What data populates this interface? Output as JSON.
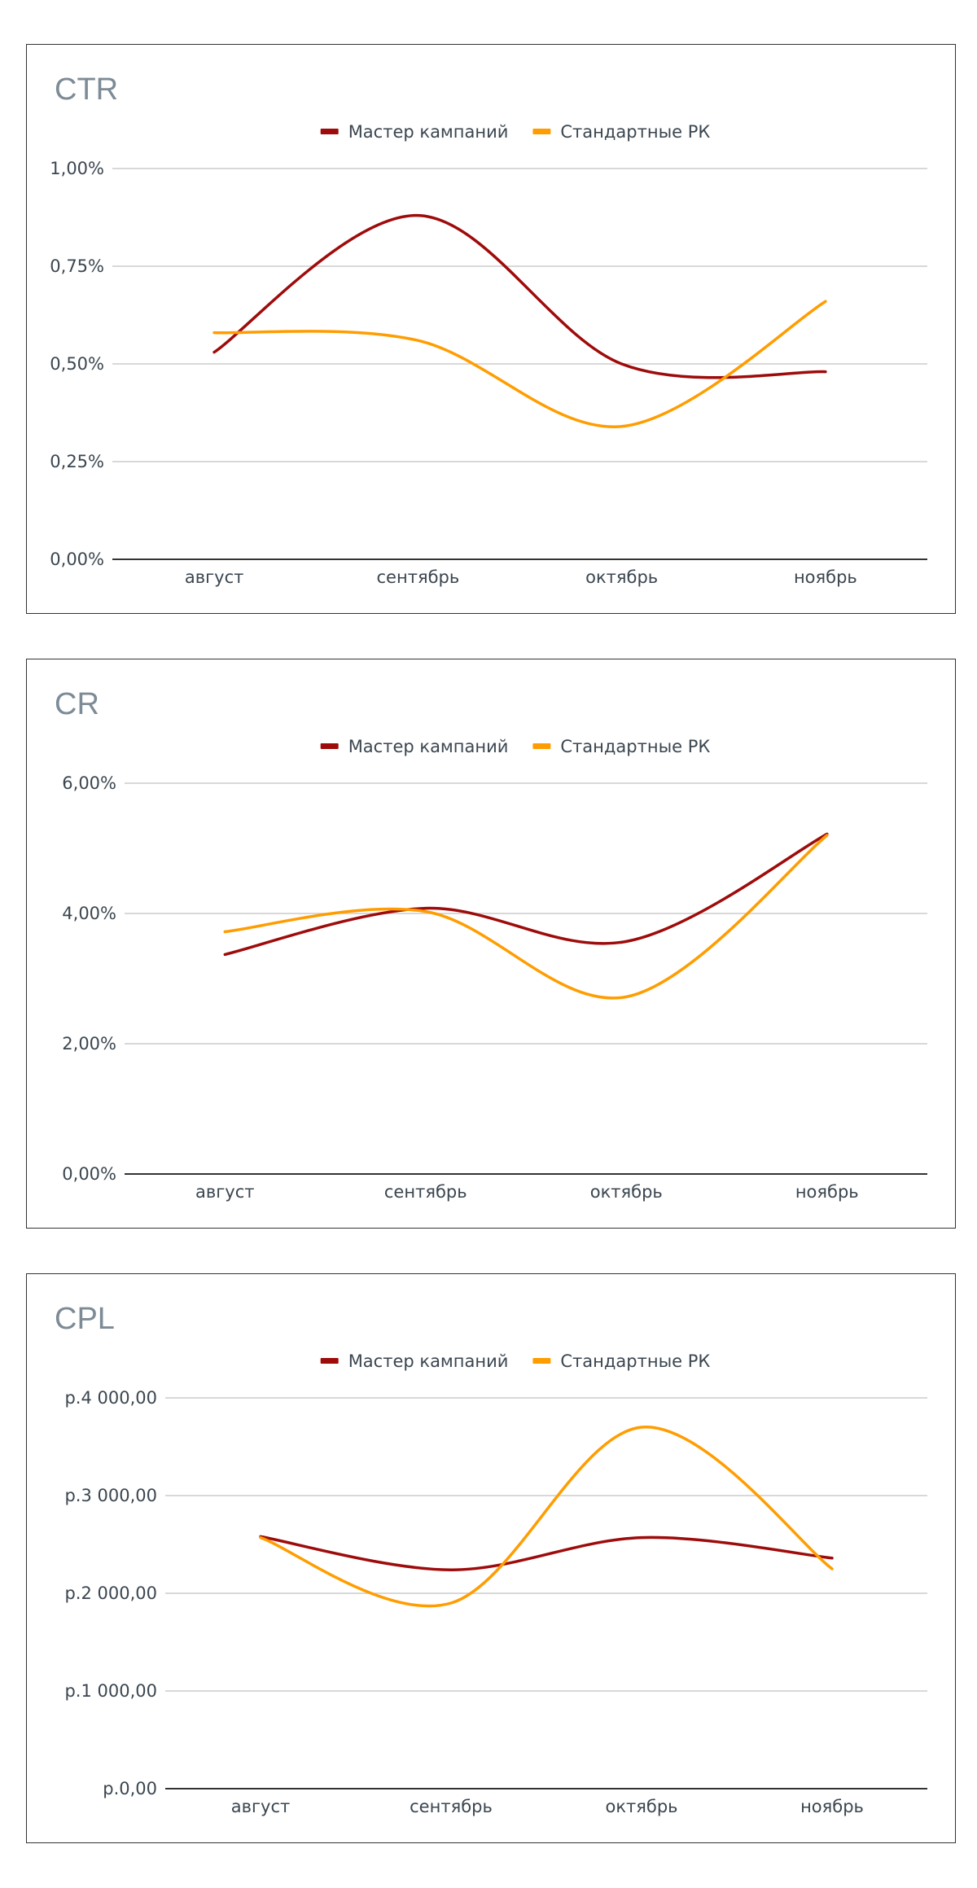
{
  "legend": {
    "series_names": [
      "Мастер кампаний",
      "Стандартные РК"
    ],
    "colors": [
      "#9e0b0b",
      "#ff9d00"
    ]
  },
  "chart_data": [
    {
      "type": "line",
      "title": "CTR",
      "xlabel": "",
      "ylabel": "",
      "categories": [
        "август",
        "сентябрь",
        "октябрь",
        "ноябрь"
      ],
      "series": [
        {
          "name": "Мастер кампаний",
          "color": "#9e0b0b",
          "values": [
            0.53,
            0.88,
            0.5,
            0.48
          ]
        },
        {
          "name": "Стандартные РК",
          "color": "#ff9d00",
          "values": [
            0.58,
            0.56,
            0.34,
            0.66
          ]
        }
      ],
      "ylim": [
        0,
        1.0
      ],
      "yticks": [
        0,
        0.25,
        0.5,
        0.75,
        1.0
      ],
      "ytick_labels": [
        "0,00%",
        "0,25%",
        "0,50%",
        "0,75%",
        "1,00%"
      ],
      "grid": true,
      "smooth": true,
      "legend_position": "top"
    },
    {
      "type": "line",
      "title": "CR",
      "xlabel": "",
      "ylabel": "",
      "categories": [
        "август",
        "сентябрь",
        "октябрь",
        "ноябрь"
      ],
      "series": [
        {
          "name": "Мастер кампаний",
          "color": "#9e0b0b",
          "values": [
            3.37,
            4.08,
            3.57,
            5.22
          ]
        },
        {
          "name": "Стандартные РК",
          "color": "#ff9d00",
          "values": [
            3.72,
            4.03,
            2.72,
            5.2
          ]
        }
      ],
      "ylim": [
        0,
        6.0
      ],
      "yticks": [
        0,
        2,
        4,
        6
      ],
      "ytick_labels": [
        "0,00%",
        "2,00%",
        "4,00%",
        "6,00%"
      ],
      "grid": true,
      "smooth": true,
      "legend_position": "top"
    },
    {
      "type": "line",
      "title": "CPL",
      "xlabel": "",
      "ylabel": "",
      "categories": [
        "август",
        "сентябрь",
        "октябрь",
        "ноябрь"
      ],
      "series": [
        {
          "name": "Мастер кампаний",
          "color": "#9e0b0b",
          "values": [
            2580,
            2240,
            2570,
            2360
          ]
        },
        {
          "name": "Стандартные РК",
          "color": "#ff9d00",
          "values": [
            2570,
            1900,
            3700,
            2250
          ]
        }
      ],
      "ylim": [
        0,
        4000
      ],
      "yticks": [
        0,
        1000,
        2000,
        3000,
        4000
      ],
      "ytick_labels": [
        "р.0,00",
        "р.1 000,00",
        "р.2 000,00",
        "р.3 000,00",
        "р.4 000,00"
      ],
      "grid": true,
      "smooth": true,
      "legend_position": "top"
    }
  ]
}
